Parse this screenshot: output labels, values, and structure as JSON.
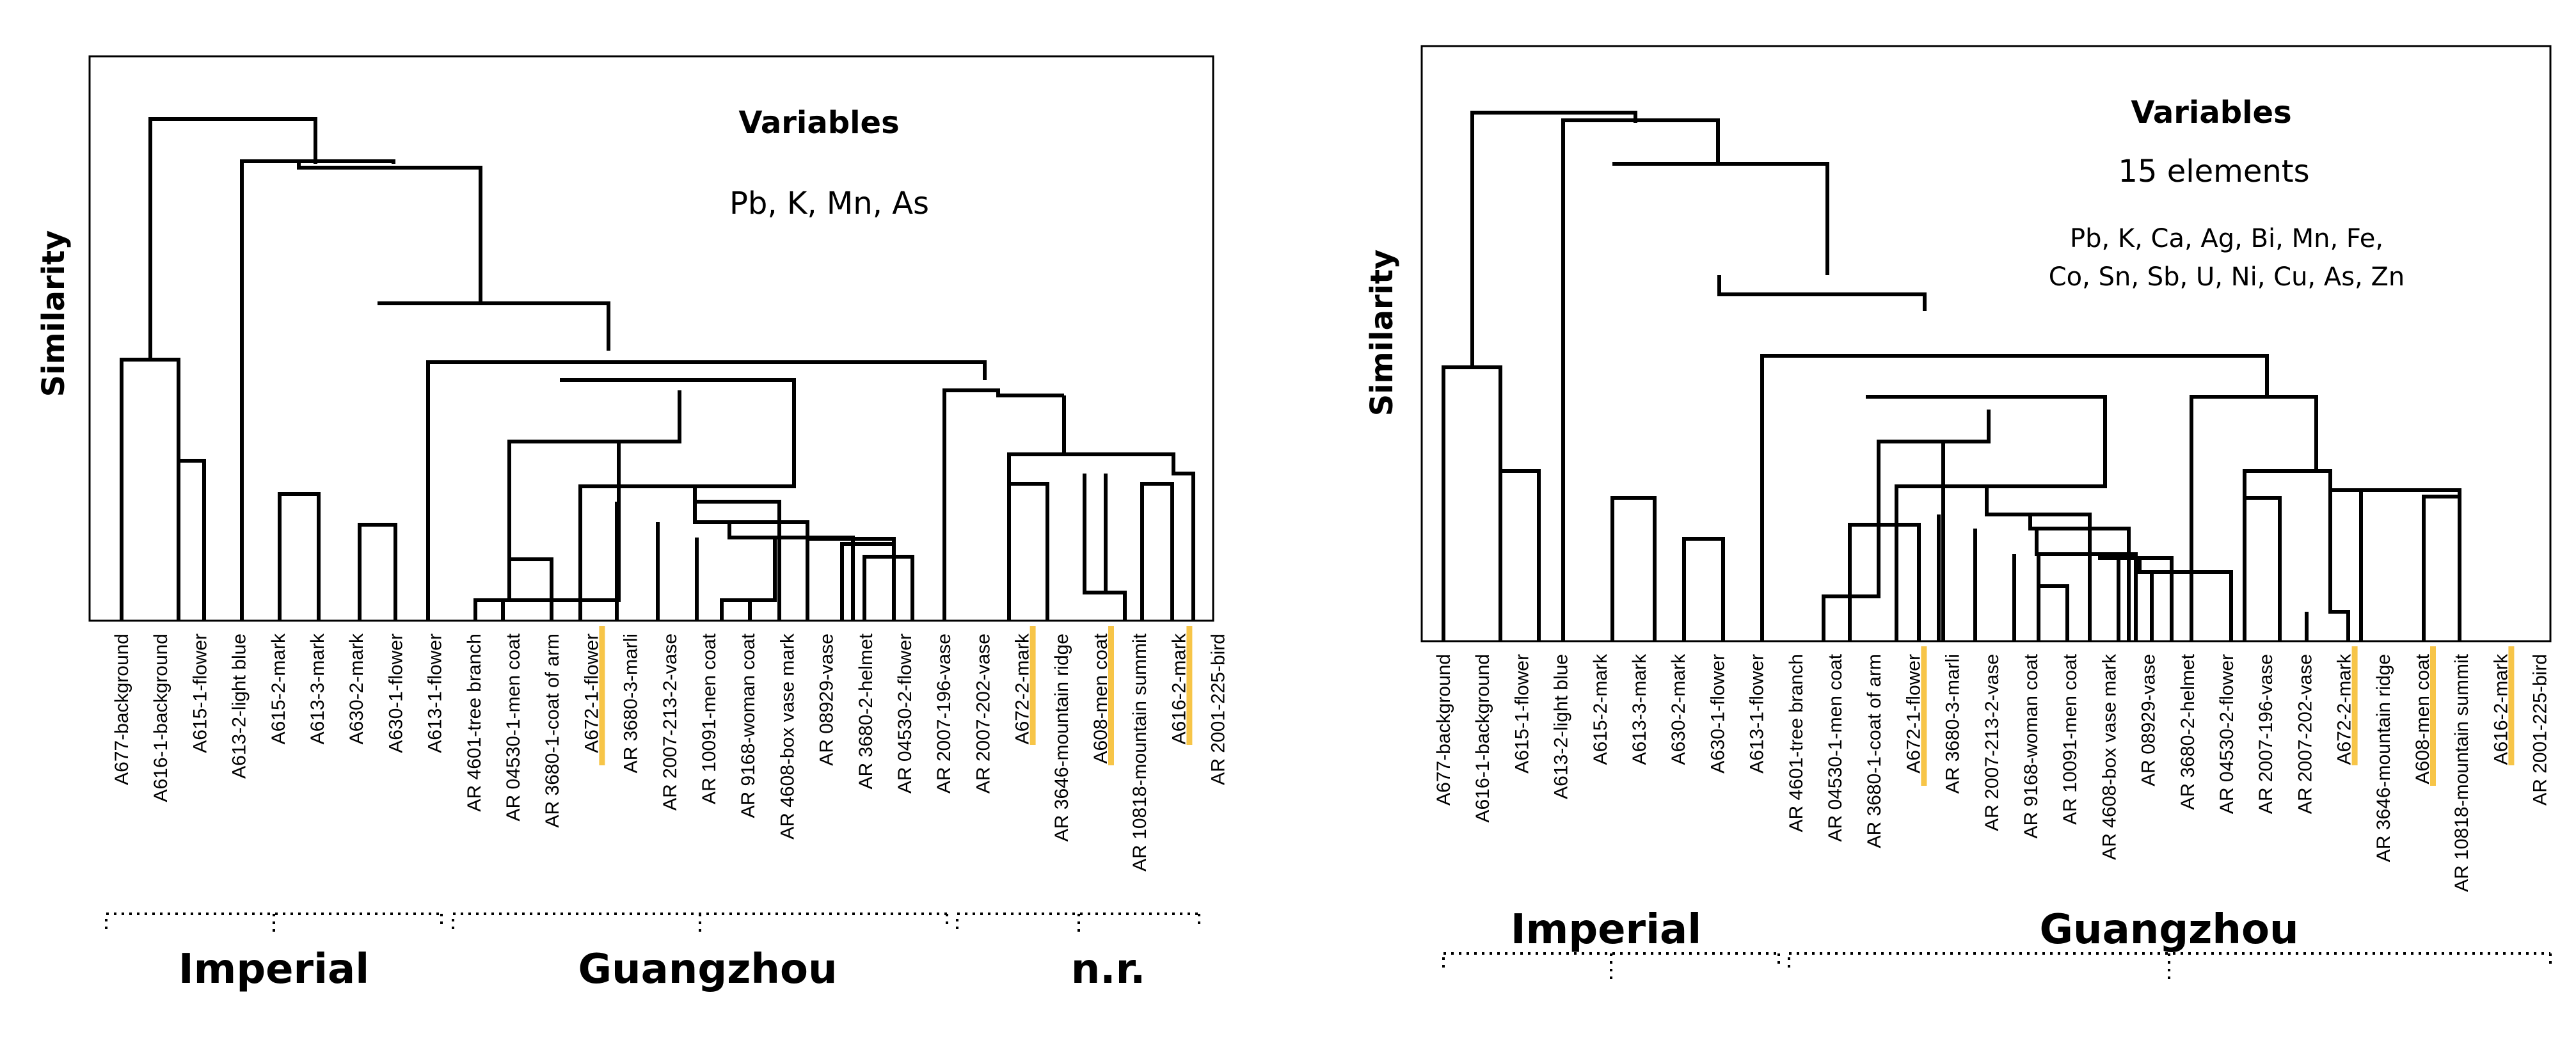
{
  "left_panel": {
    "y_label": "Similarity",
    "variables_title": "Variables",
    "variables_list": "Pb, K, Mn, As",
    "leaves": [
      "A677-background",
      "A616-1-background",
      "A615-1-flower",
      "A613-2-light blue",
      "A615-2-mark",
      "A613-3-mark",
      "A630-2-mark",
      "A630-1-flower",
      "A613-1-flower",
      "AR 4601-tree branch",
      "AR 04530-1-men coat",
      "AR 3680-1-coat of arm",
      "A672-1-flower",
      "AR 3680-3-marli",
      "AR 2007-213-2-vase",
      "AR 10091-men coat",
      "AR 9168-woman coat",
      "AR 4608-box vase mark",
      "AR 08929-vase",
      "AR 3680-2-helmet",
      "AR 04530-2-flower",
      "AR 2007-196-vase",
      "AR 2007-202-vase",
      "A672-2-mark",
      "AR 3646-mountain ridge",
      "A608-men coat",
      "AR 10818-mountain summit",
      "A616-2-mark",
      "AR 2001-225-bird"
    ],
    "highlighted_leaves": [
      "A672-1-flower",
      "A672-2-mark",
      "A608-men coat",
      "A616-2-mark"
    ],
    "groups": [
      "Imperial",
      "Guangzhou",
      "n.r."
    ]
  },
  "right_panel": {
    "y_label": "Similarity",
    "variables_title": "Variables",
    "variables_count": "15 elements",
    "variables_line1": "Pb, K, Ca, Ag, Bi, Mn, Fe,",
    "variables_line2": "Co, Sn, Sb, U, Ni, Cu, As, Zn",
    "leaves": [
      "A677-background",
      "A616-1-background",
      "A615-1-flower",
      "A613-2-light blue",
      "A615-2-mark",
      "A613-3-mark",
      "A630-2-mark",
      "A630-1-flower",
      "A613-1-flower",
      "AR 4601-tree branch",
      "AR 04530-1-men coat",
      "AR 3680-1-coat of arm",
      "A672-1-flower",
      "AR 3680-3-marli",
      "AR 2007-213-2-vase",
      "AR 9168-woman coat",
      "AR 10091-men coat",
      "AR 4608-box vase mark",
      "AR 08929-vase",
      "AR 3680-2-helmet",
      "AR 04530-2-flower",
      "AR 2007-196-vase",
      "AR 2007-202-vase",
      "A672-2-mark",
      "AR 3646-mountain ridge",
      "A608-men coat",
      "AR 10818-mountain summit",
      "A616-2-mark",
      "AR 2001-225-bird"
    ],
    "highlighted_leaves": [
      "A672-1-flower",
      "A672-2-mark",
      "A608-men coat",
      "A616-2-mark"
    ],
    "groups": [
      "Imperial",
      "Guangzhou"
    ]
  },
  "colors": {
    "highlight": "#f7c548",
    "line": "#000000"
  }
}
